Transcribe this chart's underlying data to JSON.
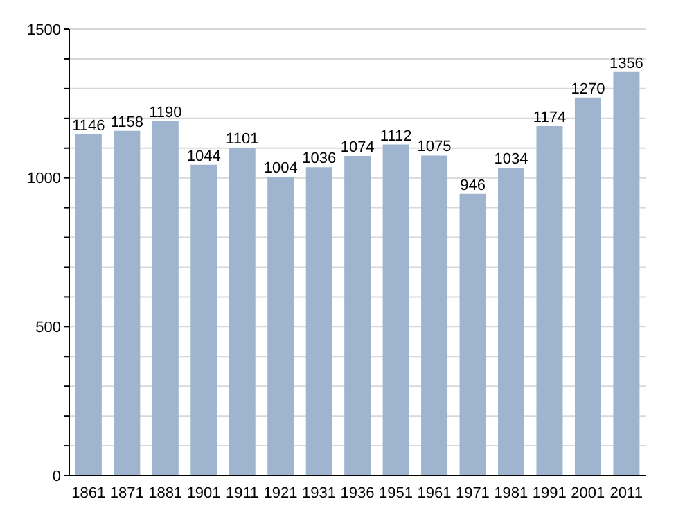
{
  "chart_data": {
    "type": "bar",
    "categories": [
      "1861",
      "1871",
      "1881",
      "1901",
      "1911",
      "1921",
      "1931",
      "1936",
      "1951",
      "1961",
      "1971",
      "1981",
      "1991",
      "2001",
      "2011"
    ],
    "values": [
      1146,
      1158,
      1190,
      1044,
      1101,
      1004,
      1036,
      1074,
      1112,
      1075,
      946,
      1034,
      1174,
      1270,
      1356
    ],
    "color": "#9fb5cf",
    "ylim": [
      0,
      1500
    ],
    "yticks": [
      0,
      {
        "value": 100,
        "label": null
      },
      {
        "value": 200,
        "label": null
      },
      {
        "value": 300,
        "label": null
      },
      {
        "value": 400,
        "label": null
      },
      500,
      {
        "value": 600,
        "label": null
      },
      {
        "value": 700,
        "label": null
      },
      {
        "value": 800,
        "label": null
      },
      {
        "value": 900,
        "label": null
      },
      1000,
      {
        "value": 1100,
        "label": null
      },
      {
        "value": 1200,
        "label": null
      },
      {
        "value": 1300,
        "label": null
      },
      {
        "value": 1400,
        "label": null
      },
      1500
    ],
    "grid": "y",
    "data_labels": true
  }
}
